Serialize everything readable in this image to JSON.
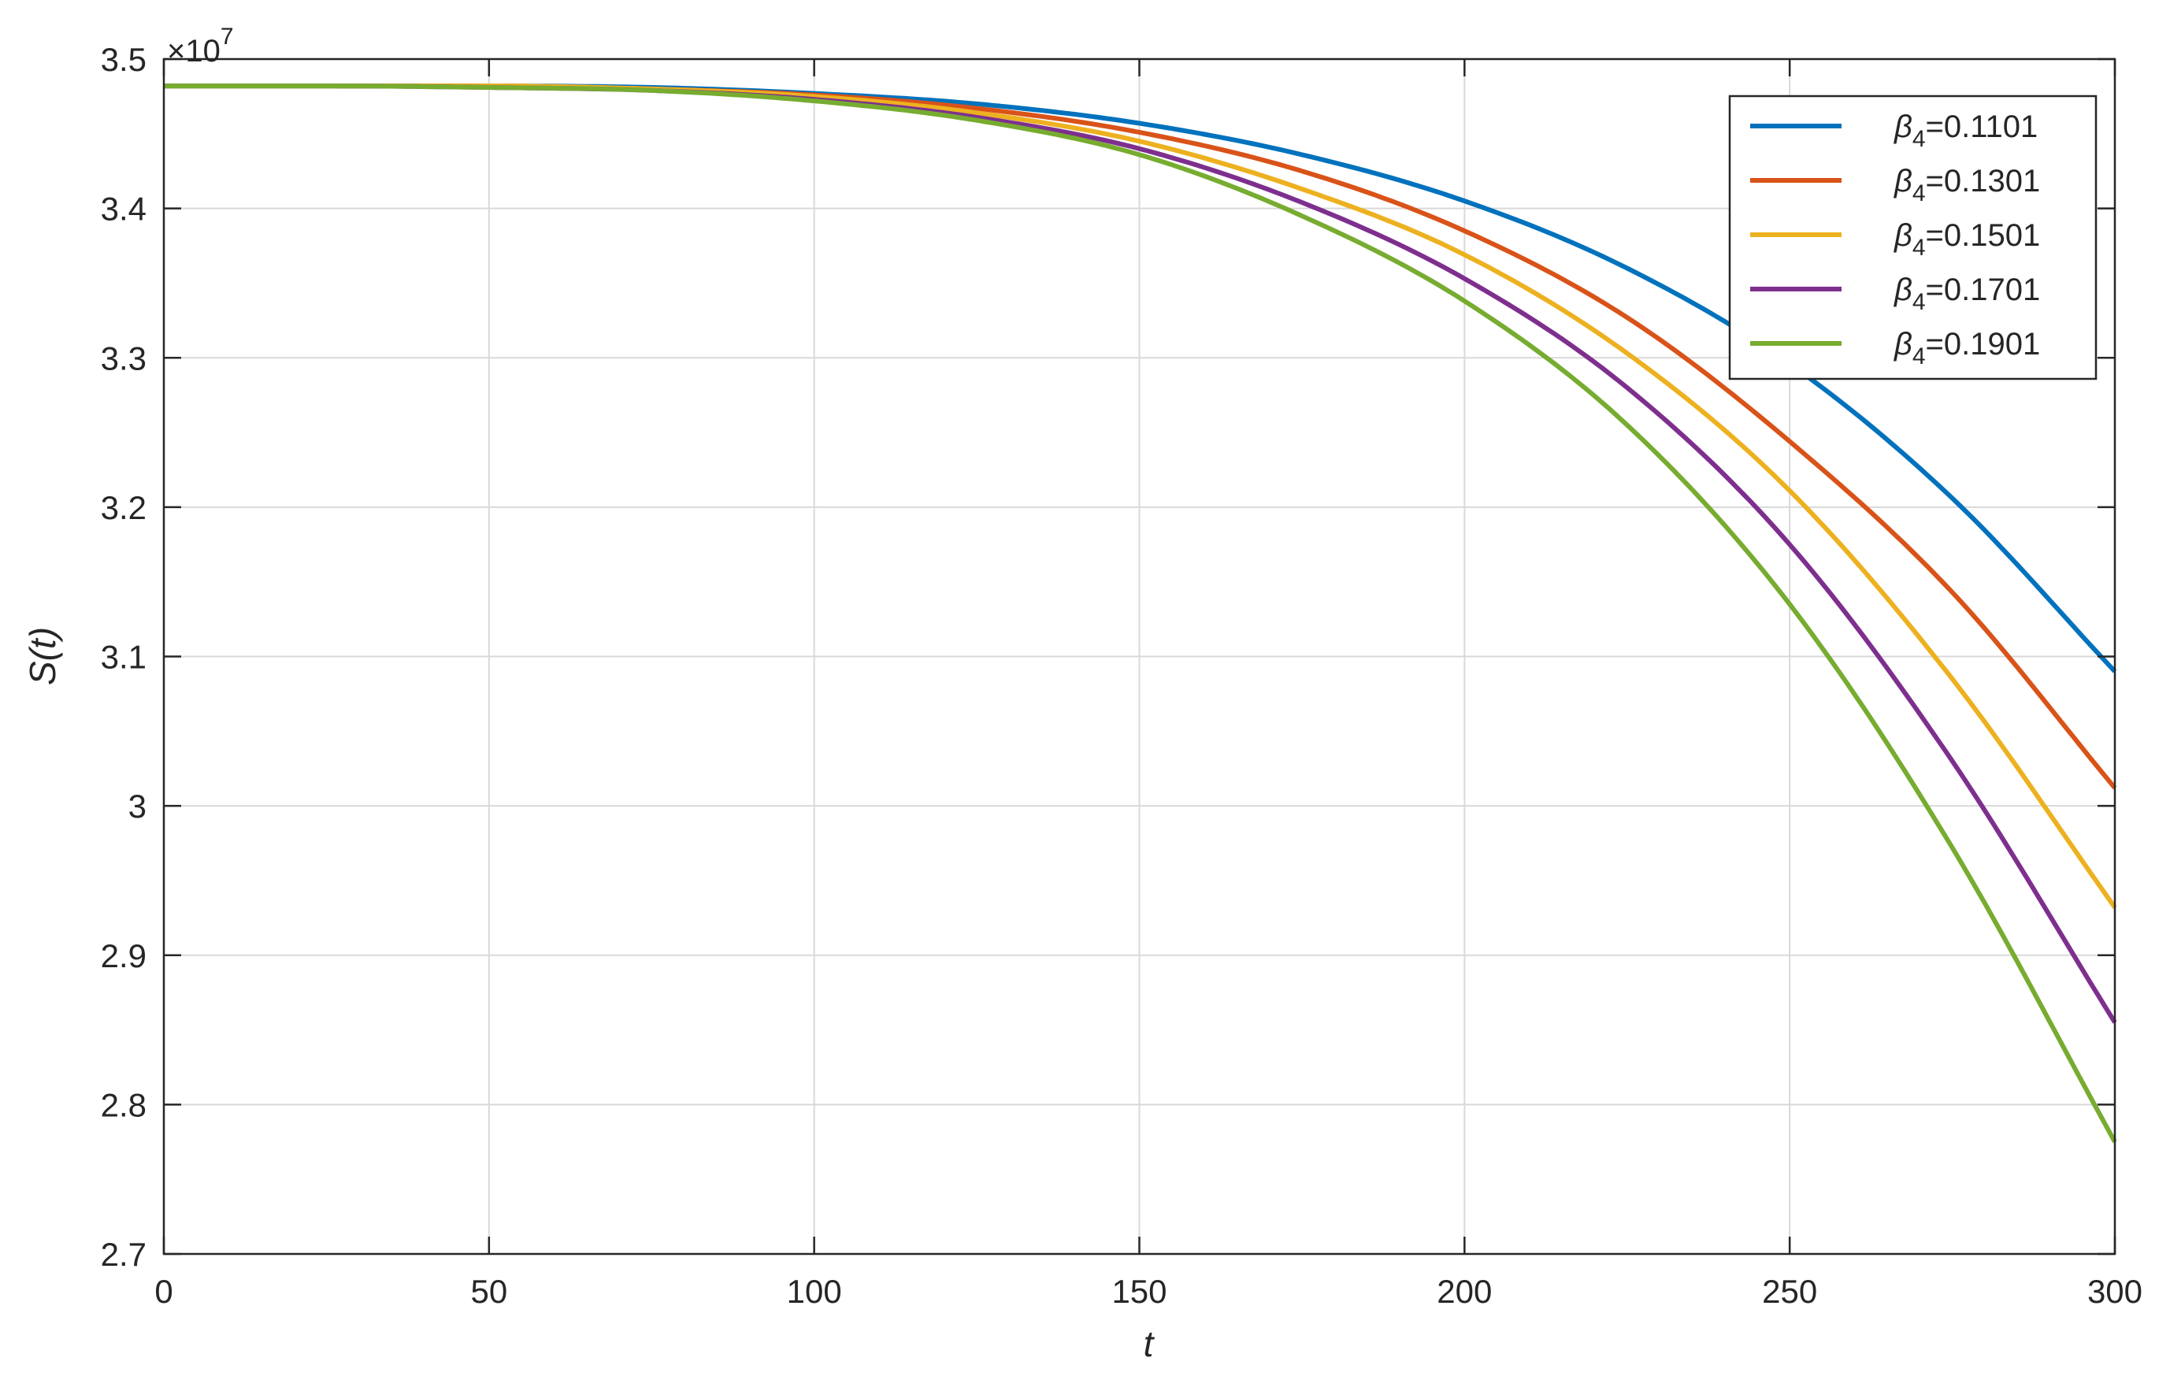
{
  "chart_data": {
    "type": "line",
    "xlabel": "t",
    "ylabel": "S(t)",
    "y_exponent_label": "×10",
    "y_exponent_power": "7",
    "xlim": [
      0,
      300
    ],
    "ylim": [
      2.7,
      3.5
    ],
    "y_scale_factor": 10000000,
    "x_ticks": [
      0,
      50,
      100,
      150,
      200,
      250,
      300
    ],
    "x_tick_labels": [
      "0",
      "50",
      "100",
      "150",
      "200",
      "250",
      "300"
    ],
    "y_ticks": [
      2.7,
      2.8,
      2.9,
      3.0,
      3.1,
      3.2,
      3.3,
      3.4,
      3.5
    ],
    "y_tick_labels": [
      "2.7",
      "2.8",
      "2.9",
      "3",
      "3.1",
      "3.2",
      "3.3",
      "3.4",
      "3.5"
    ],
    "grid": true,
    "legend_position": "top-right",
    "x": [
      0,
      25,
      50,
      75,
      100,
      125,
      150,
      175,
      200,
      225,
      250,
      275,
      300
    ],
    "series": [
      {
        "name": "0.1101",
        "legend_symbol": "β",
        "legend_subscript": "4",
        "legend_value": "=0.1101",
        "color": "#0072BD",
        "values": [
          3.482,
          3.482,
          3.482,
          3.481,
          3.477,
          3.47,
          3.457,
          3.436,
          3.405,
          3.36,
          3.296,
          3.206,
          3.09
        ]
      },
      {
        "name": "0.1301",
        "legend_symbol": "β",
        "legend_subscript": "4",
        "legend_value": "=0.1301",
        "color": "#D95319",
        "values": [
          3.482,
          3.482,
          3.482,
          3.48,
          3.476,
          3.467,
          3.451,
          3.425,
          3.385,
          3.327,
          3.244,
          3.143,
          3.012
        ]
      },
      {
        "name": "0.1501",
        "legend_symbol": "β",
        "legend_subscript": "4",
        "legend_value": "=0.1501",
        "color": "#EDB120",
        "values": [
          3.482,
          3.482,
          3.482,
          3.48,
          3.475,
          3.464,
          3.445,
          3.413,
          3.369,
          3.303,
          3.211,
          3.085,
          2.932
        ]
      },
      {
        "name": "0.1701",
        "legend_symbol": "β",
        "legend_subscript": "4",
        "legend_value": "=0.1701",
        "color": "#7E2F8E",
        "values": [
          3.482,
          3.482,
          3.481,
          3.479,
          3.473,
          3.461,
          3.44,
          3.404,
          3.353,
          3.28,
          3.175,
          3.03,
          2.855
        ]
      },
      {
        "name": "0.1901",
        "legend_symbol": "β",
        "legend_subscript": "4",
        "legend_value": "=0.1901",
        "color": "#77AC30",
        "values": [
          3.482,
          3.482,
          3.481,
          3.479,
          3.472,
          3.459,
          3.436,
          3.395,
          3.338,
          3.255,
          3.135,
          2.972,
          2.775
        ]
      }
    ]
  }
}
